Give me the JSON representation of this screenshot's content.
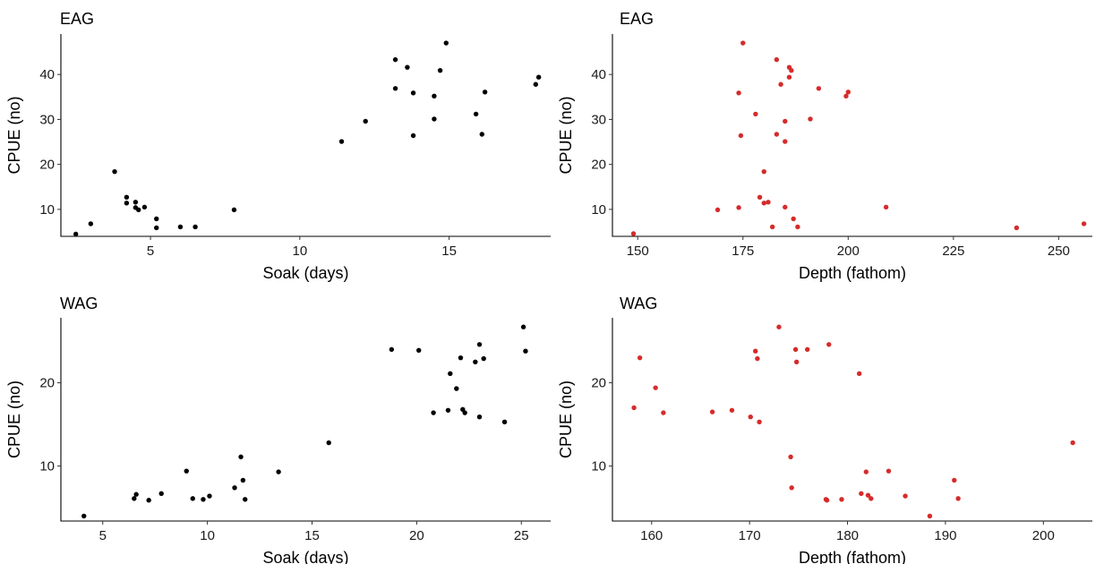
{
  "chart_data": [
    {
      "type": "scatter",
      "title": "EAG",
      "xlabel": "Soak (days)",
      "ylabel": "CPUE (no)",
      "xlim": [
        2.0,
        18.4
      ],
      "ylim": [
        4.0,
        49.0
      ],
      "xticks": [
        5,
        10,
        15
      ],
      "yticks": [
        10,
        20,
        30,
        40
      ],
      "grid": false,
      "point_color": "#000000",
      "points": [
        {
          "x": 2.5,
          "y": 4.5
        },
        {
          "x": 3.0,
          "y": 6.8
        },
        {
          "x": 3.8,
          "y": 18.4
        },
        {
          "x": 4.2,
          "y": 12.7
        },
        {
          "x": 4.2,
          "y": 11.4
        },
        {
          "x": 4.5,
          "y": 11.6
        },
        {
          "x": 4.5,
          "y": 10.4
        },
        {
          "x": 4.6,
          "y": 9.9
        },
        {
          "x": 4.8,
          "y": 10.5
        },
        {
          "x": 5.2,
          "y": 7.9
        },
        {
          "x": 5.2,
          "y": 5.9
        },
        {
          "x": 6.0,
          "y": 6.1
        },
        {
          "x": 6.5,
          "y": 6.1
        },
        {
          "x": 7.8,
          "y": 9.9
        },
        {
          "x": 11.4,
          "y": 25.1
        },
        {
          "x": 12.2,
          "y": 29.6
        },
        {
          "x": 13.2,
          "y": 43.3
        },
        {
          "x": 13.2,
          "y": 36.9
        },
        {
          "x": 13.6,
          "y": 41.6
        },
        {
          "x": 13.8,
          "y": 35.9
        },
        {
          "x": 13.8,
          "y": 26.4
        },
        {
          "x": 14.5,
          "y": 35.2
        },
        {
          "x": 14.5,
          "y": 30.1
        },
        {
          "x": 14.7,
          "y": 40.9
        },
        {
          "x": 14.9,
          "y": 47.0
        },
        {
          "x": 15.9,
          "y": 31.2
        },
        {
          "x": 16.1,
          "y": 26.7
        },
        {
          "x": 16.2,
          "y": 36.1
        },
        {
          "x": 17.9,
          "y": 37.8
        },
        {
          "x": 18.0,
          "y": 39.4
        }
      ]
    },
    {
      "type": "scatter",
      "title": "EAG",
      "xlabel": "Depth (fathom)",
      "ylabel": "CPUE (no)",
      "xlim": [
        144.0,
        258.0
      ],
      "ylim": [
        4.0,
        49.0
      ],
      "xticks": [
        150,
        175,
        200,
        225,
        250
      ],
      "yticks": [
        10,
        20,
        30,
        40
      ],
      "grid": false,
      "point_color": "#d62b2b",
      "points": [
        {
          "x": 149,
          "y": 4.6
        },
        {
          "x": 169,
          "y": 9.9
        },
        {
          "x": 174,
          "y": 10.4
        },
        {
          "x": 174,
          "y": 35.9
        },
        {
          "x": 175,
          "y": 47.0
        },
        {
          "x": 174.5,
          "y": 26.4
        },
        {
          "x": 178,
          "y": 31.2
        },
        {
          "x": 179,
          "y": 12.7
        },
        {
          "x": 180,
          "y": 18.4
        },
        {
          "x": 180,
          "y": 11.4
        },
        {
          "x": 181,
          "y": 11.6
        },
        {
          "x": 182,
          "y": 6.1
        },
        {
          "x": 183,
          "y": 43.3
        },
        {
          "x": 183,
          "y": 26.7
        },
        {
          "x": 184,
          "y": 37.8
        },
        {
          "x": 185,
          "y": 29.6
        },
        {
          "x": 185,
          "y": 25.1
        },
        {
          "x": 185,
          "y": 10.5
        },
        {
          "x": 186,
          "y": 39.4
        },
        {
          "x": 186,
          "y": 41.6
        },
        {
          "x": 186.5,
          "y": 40.9
        },
        {
          "x": 187,
          "y": 7.9
        },
        {
          "x": 188,
          "y": 6.1
        },
        {
          "x": 191,
          "y": 30.1
        },
        {
          "x": 193,
          "y": 36.9
        },
        {
          "x": 199.5,
          "y": 35.2
        },
        {
          "x": 200,
          "y": 36.1
        },
        {
          "x": 209,
          "y": 10.5
        },
        {
          "x": 240,
          "y": 5.9
        },
        {
          "x": 256,
          "y": 6.8
        }
      ]
    },
    {
      "type": "scatter",
      "title": "WAG",
      "xlabel": "Soak (days)",
      "ylabel": "CPUE (no)",
      "xlim": [
        3.0,
        26.4
      ],
      "ylim": [
        3.4,
        27.8
      ],
      "xticks": [
        5,
        10,
        15,
        20,
        25
      ],
      "yticks": [
        10,
        20
      ],
      "grid": false,
      "point_color": "#000000",
      "points": [
        {
          "x": 4.1,
          "y": 4.0
        },
        {
          "x": 6.5,
          "y": 6.1
        },
        {
          "x": 6.6,
          "y": 6.6
        },
        {
          "x": 7.2,
          "y": 5.9
        },
        {
          "x": 7.8,
          "y": 6.7
        },
        {
          "x": 9.0,
          "y": 9.4
        },
        {
          "x": 9.3,
          "y": 6.1
        },
        {
          "x": 9.8,
          "y": 6.0
        },
        {
          "x": 10.1,
          "y": 6.4
        },
        {
          "x": 11.3,
          "y": 7.4
        },
        {
          "x": 11.6,
          "y": 11.1
        },
        {
          "x": 11.7,
          "y": 8.3
        },
        {
          "x": 11.8,
          "y": 6.0
        },
        {
          "x": 13.4,
          "y": 9.3
        },
        {
          "x": 15.8,
          "y": 12.8
        },
        {
          "x": 18.8,
          "y": 24.0
        },
        {
          "x": 20.1,
          "y": 23.9
        },
        {
          "x": 20.8,
          "y": 16.4
        },
        {
          "x": 21.5,
          "y": 16.7
        },
        {
          "x": 21.6,
          "y": 21.1
        },
        {
          "x": 21.9,
          "y": 19.3
        },
        {
          "x": 22.1,
          "y": 23.0
        },
        {
          "x": 22.2,
          "y": 16.8
        },
        {
          "x": 22.3,
          "y": 16.4
        },
        {
          "x": 22.8,
          "y": 22.5
        },
        {
          "x": 23.0,
          "y": 15.9
        },
        {
          "x": 23.0,
          "y": 24.6
        },
        {
          "x": 23.2,
          "y": 22.9
        },
        {
          "x": 24.2,
          "y": 15.3
        },
        {
          "x": 25.1,
          "y": 26.7
        },
        {
          "x": 25.2,
          "y": 23.8
        }
      ]
    },
    {
      "type": "scatter",
      "title": "WAG",
      "xlabel": "Depth (fathom)",
      "ylabel": "CPUE (no)",
      "xlim": [
        156.0,
        205.0
      ],
      "ylim": [
        3.4,
        27.8
      ],
      "xticks": [
        160,
        170,
        180,
        190,
        200
      ],
      "yticks": [
        10,
        20
      ],
      "grid": false,
      "point_color": "#d62b2b",
      "points": [
        {
          "x": 158.2,
          "y": 17.0
        },
        {
          "x": 158.8,
          "y": 23.0
        },
        {
          "x": 160.4,
          "y": 19.4
        },
        {
          "x": 161.2,
          "y": 16.4
        },
        {
          "x": 166.2,
          "y": 16.5
        },
        {
          "x": 168.2,
          "y": 16.7
        },
        {
          "x": 170.1,
          "y": 15.9
        },
        {
          "x": 170.6,
          "y": 23.8
        },
        {
          "x": 170.8,
          "y": 22.9
        },
        {
          "x": 171.0,
          "y": 15.3
        },
        {
          "x": 173.0,
          "y": 26.7
        },
        {
          "x": 174.2,
          "y": 11.1
        },
        {
          "x": 174.3,
          "y": 7.4
        },
        {
          "x": 174.7,
          "y": 24.0
        },
        {
          "x": 174.8,
          "y": 22.5
        },
        {
          "x": 175.9,
          "y": 24.0
        },
        {
          "x": 177.8,
          "y": 6.0
        },
        {
          "x": 177.9,
          "y": 5.9
        },
        {
          "x": 178.1,
          "y": 24.6
        },
        {
          "x": 179.4,
          "y": 6.0
        },
        {
          "x": 181.2,
          "y": 21.1
        },
        {
          "x": 181.4,
          "y": 6.7
        },
        {
          "x": 181.9,
          "y": 9.3
        },
        {
          "x": 182.1,
          "y": 6.5
        },
        {
          "x": 182.4,
          "y": 6.1
        },
        {
          "x": 184.2,
          "y": 9.4
        },
        {
          "x": 185.9,
          "y": 6.4
        },
        {
          "x": 188.4,
          "y": 4.0
        },
        {
          "x": 190.9,
          "y": 8.3
        },
        {
          "x": 191.3,
          "y": 6.1
        },
        {
          "x": 203.0,
          "y": 12.8
        }
      ]
    }
  ]
}
